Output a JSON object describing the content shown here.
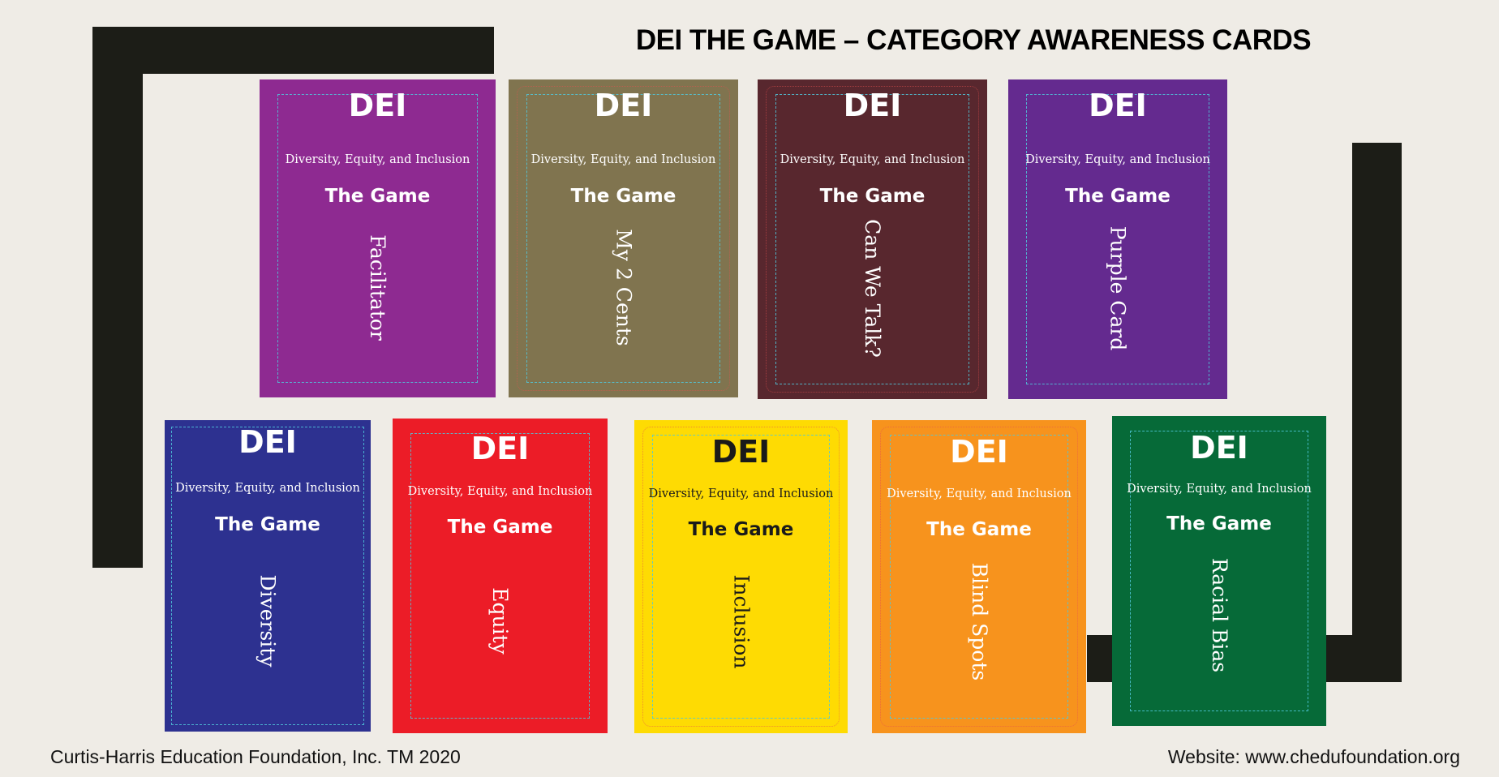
{
  "title": "DEI THE GAME – CATEGORY AWARENESS CARDS",
  "card_common": {
    "dei": "DEI",
    "subtitle": "Diversity, Equity, and Inclusion",
    "game": "The Game"
  },
  "cards": [
    {
      "category": "Facilitator",
      "bg": "#8e2a91",
      "text": "#ffffff"
    },
    {
      "category": "My 2 Cents",
      "bg": "#80744f",
      "text": "#ffffff"
    },
    {
      "category": "Can We Talk?",
      "bg": "#58272e",
      "text": "#ffffff"
    },
    {
      "category": "Purple Card",
      "bg": "#642a8f",
      "text": "#ffffff"
    },
    {
      "category": "Diversity",
      "bg": "#2d3190",
      "text": "#ffffff"
    },
    {
      "category": "Equity",
      "bg": "#ec1c27",
      "text": "#ffffff"
    },
    {
      "category": "Inclusion",
      "bg": "#fedb03",
      "text": "#1a1a1a"
    },
    {
      "category": "Blind Spots",
      "bg": "#f7931d",
      "text": "#ffffff"
    },
    {
      "category": "Racial Bias",
      "bg": "#066a38",
      "text": "#ffffff"
    }
  ],
  "footer": {
    "left": "Curtis-Harris Education Foundation, Inc. TM 2020",
    "right": "Website:  www.chedufoundation.org"
  }
}
